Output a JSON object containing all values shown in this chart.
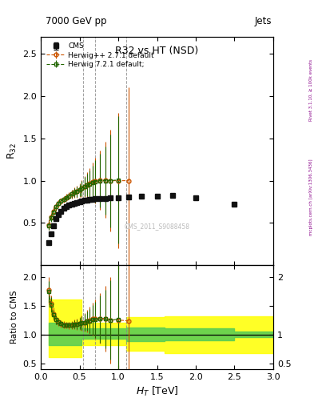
{
  "title_top": "7000 GeV pp",
  "title_right": "Jets",
  "plot_title_main": "R32 vs HT",
  "plot_title_sub": "(NSD)",
  "xlabel": "H$_T$ [TeV]",
  "ylabel_main": "R$_{32}$",
  "ylabel_ratio": "Ratio to CMS",
  "watermark": "CMS_2011_S9088458",
  "rivet_label": "Rivet 3.1.10, ≥ 100k events",
  "arxiv_label": "mcplots.cern.ch [arXiv:1306.3436]",
  "cms_x": [
    0.1,
    0.13,
    0.16,
    0.2,
    0.23,
    0.26,
    0.3,
    0.33,
    0.36,
    0.4,
    0.43,
    0.46,
    0.5,
    0.53,
    0.57,
    0.6,
    0.63,
    0.67,
    0.7,
    0.76,
    0.83,
    0.9,
    1.0,
    1.13,
    1.3,
    1.5,
    1.7,
    2.0,
    2.5
  ],
  "cms_y": [
    0.27,
    0.37,
    0.47,
    0.55,
    0.6,
    0.64,
    0.67,
    0.69,
    0.71,
    0.72,
    0.73,
    0.74,
    0.75,
    0.76,
    0.77,
    0.77,
    0.78,
    0.78,
    0.79,
    0.79,
    0.79,
    0.8,
    0.8,
    0.81,
    0.82,
    0.82,
    0.83,
    0.8,
    0.72
  ],
  "cms_yerr": [
    0.02,
    0.02,
    0.02,
    0.02,
    0.02,
    0.02,
    0.01,
    0.01,
    0.01,
    0.01,
    0.01,
    0.01,
    0.01,
    0.01,
    0.01,
    0.01,
    0.01,
    0.01,
    0.01,
    0.01,
    0.01,
    0.01,
    0.01,
    0.01,
    0.01,
    0.01,
    0.01,
    0.01,
    0.02
  ],
  "hw2_x": [
    0.1,
    0.13,
    0.16,
    0.2,
    0.23,
    0.26,
    0.3,
    0.33,
    0.36,
    0.4,
    0.43,
    0.46,
    0.5,
    0.53,
    0.57,
    0.6,
    0.63,
    0.67,
    0.7,
    0.76,
    0.83,
    0.9,
    1.0,
    1.13
  ],
  "hw2_y": [
    0.48,
    0.57,
    0.64,
    0.69,
    0.73,
    0.76,
    0.78,
    0.8,
    0.82,
    0.84,
    0.86,
    0.87,
    0.89,
    0.91,
    0.93,
    0.95,
    0.97,
    0.99,
    1.0,
    1.01,
    1.01,
    1.0,
    1.0,
    1.0
  ],
  "hw2_yerr": [
    0.06,
    0.05,
    0.05,
    0.04,
    0.04,
    0.04,
    0.04,
    0.04,
    0.04,
    0.05,
    0.06,
    0.07,
    0.08,
    0.1,
    0.12,
    0.15,
    0.18,
    0.22,
    0.27,
    0.35,
    0.45,
    0.6,
    0.8,
    1.1
  ],
  "hw7_x": [
    0.1,
    0.13,
    0.16,
    0.2,
    0.23,
    0.26,
    0.3,
    0.33,
    0.36,
    0.4,
    0.43,
    0.46,
    0.5,
    0.53,
    0.57,
    0.6,
    0.63,
    0.67,
    0.7,
    0.76,
    0.83,
    0.9,
    1.0
  ],
  "hw7_y": [
    0.47,
    0.56,
    0.63,
    0.69,
    0.73,
    0.76,
    0.78,
    0.8,
    0.82,
    0.84,
    0.86,
    0.87,
    0.89,
    0.91,
    0.93,
    0.95,
    0.96,
    0.98,
    0.99,
    1.0,
    1.0,
    1.0,
    1.01
  ],
  "hw7_yerr": [
    0.05,
    0.05,
    0.04,
    0.04,
    0.03,
    0.03,
    0.03,
    0.03,
    0.03,
    0.04,
    0.05,
    0.06,
    0.07,
    0.09,
    0.11,
    0.13,
    0.16,
    0.2,
    0.25,
    0.32,
    0.4,
    0.55,
    0.75
  ],
  "xlim": [
    0.0,
    3.0
  ],
  "ylim_main": [
    0.0,
    2.7
  ],
  "ylim_ratio": [
    0.4,
    2.2
  ],
  "yticks_main": [
    0.5,
    1.0,
    1.5,
    2.0,
    2.5
  ],
  "yticks_ratio": [
    0.5,
    1.0,
    1.5,
    2.0
  ],
  "vlines": [
    0.55,
    0.7,
    1.1
  ],
  "color_cms": "#111111",
  "color_hw2": "#cc5500",
  "color_hw7": "#226600",
  "ratio_yellow_edges": [
    0.1,
    0.53,
    0.7,
    1.1,
    1.6,
    2.5,
    3.0
  ],
  "ratio_yellow_lo": [
    0.6,
    0.82,
    0.82,
    0.72,
    0.68,
    0.68,
    0.68
  ],
  "ratio_yellow_hi": [
    1.6,
    1.2,
    1.2,
    1.3,
    1.32,
    1.32,
    1.32
  ],
  "ratio_green_edges": [
    0.1,
    0.53,
    0.7,
    1.1,
    1.6,
    2.5,
    3.0
  ],
  "ratio_green_lo": [
    0.82,
    0.92,
    0.92,
    0.88,
    0.9,
    0.95,
    0.95
  ],
  "ratio_green_hi": [
    1.2,
    1.1,
    1.1,
    1.12,
    1.1,
    1.05,
    1.05
  ]
}
